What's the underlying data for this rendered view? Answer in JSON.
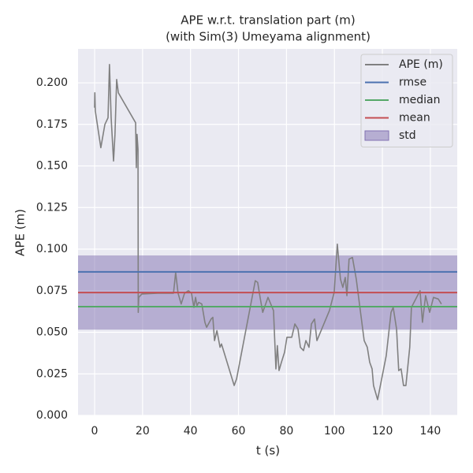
{
  "chart_data": {
    "type": "line",
    "title": [
      "APE w.r.t. translation part (m)",
      "(with Sim(3) Umeyama alignment)"
    ],
    "xlabel": "t (s)",
    "ylabel": "APE (m)",
    "xlim": [
      -6.9,
      151.2
    ],
    "ylim": [
      0,
      0.2204
    ],
    "xticks": [
      0,
      20,
      40,
      60,
      80,
      100,
      120,
      140
    ],
    "yticks": [
      {
        "value": 0,
        "label": "0.000"
      },
      {
        "value": 0.025,
        "label": "0.025"
      },
      {
        "value": 0.05,
        "label": "0.050"
      },
      {
        "value": 0.075,
        "label": "0.075"
      },
      {
        "value": 0.1,
        "label": "0.100"
      },
      {
        "value": 0.125,
        "label": "0.125"
      },
      {
        "value": 0.15,
        "label": "0.150"
      },
      {
        "value": 0.175,
        "label": "0.175"
      },
      {
        "value": 0.2,
        "label": "0.200"
      }
    ],
    "grid": true,
    "legend": "upper right",
    "series": [
      {
        "name": "APE (m)",
        "color": "#808080",
        "x": [
          0,
          0.1,
          0.3,
          2.6,
          4.3,
          5.6,
          6.2,
          6.9,
          7.9,
          8.5,
          9.2,
          9.9,
          17.1,
          17.4,
          17.7,
          18.1,
          18.2,
          18.4,
          19.7,
          26.3,
          32.9,
          33.8,
          34.8,
          36.1,
          37.5,
          39.1,
          40.4,
          41.4,
          42.1,
          42.7,
          43.4,
          44.7,
          46,
          46.7,
          48.6,
          49.3,
          50,
          51,
          52.3,
          52.9,
          58.2,
          59.2,
          67,
          68,
          69,
          70.1,
          72.3,
          74.6,
          75.6,
          76.2,
          76.9,
          77.9,
          79.2,
          80.2,
          82.2,
          83.5,
          84.8,
          85.8,
          87.1,
          88.1,
          89.4,
          90.4,
          91.7,
          92.7,
          97.9,
          99.9,
          101.2,
          102.5,
          103.5,
          104.5,
          105.2,
          106.1,
          107.5,
          109.1,
          112.4,
          113.7,
          114.7,
          115.7,
          116.3,
          118,
          121.6,
          123.6,
          124.5,
          125.9,
          126.8,
          127.8,
          128.8,
          129.8,
          131.4,
          132.1,
          135.7,
          136.7,
          138,
          139.7,
          141.3,
          143.3,
          144.6
        ],
        "values": [
          0.185,
          0.194,
          0.183,
          0.161,
          0.175,
          0.179,
          0.211,
          0.179,
          0.153,
          0.169,
          0.202,
          0.194,
          0.176,
          0.149,
          0.169,
          0.16,
          0.062,
          0.071,
          0.073,
          0.0735,
          0.0735,
          0.086,
          0.0735,
          0.067,
          0.0735,
          0.075,
          0.0735,
          0.065,
          0.071,
          0.066,
          0.068,
          0.067,
          0.056,
          0.053,
          0.058,
          0.059,
          0.045,
          0.051,
          0.041,
          0.043,
          0.018,
          0.022,
          0.081,
          0.08,
          0.071,
          0.062,
          0.071,
          0.063,
          0.028,
          0.042,
          0.027,
          0.032,
          0.038,
          0.047,
          0.047,
          0.055,
          0.052,
          0.041,
          0.039,
          0.045,
          0.041,
          0.055,
          0.058,
          0.045,
          0.063,
          0.074,
          0.103,
          0.082,
          0.077,
          0.083,
          0.072,
          0.094,
          0.095,
          0.082,
          0.045,
          0.041,
          0.032,
          0.028,
          0.018,
          0.0095,
          0.036,
          0.062,
          0.065,
          0.052,
          0.027,
          0.028,
          0.018,
          0.018,
          0.041,
          0.065,
          0.075,
          0.056,
          0.072,
          0.062,
          0.071,
          0.07,
          0.067
        ]
      }
    ],
    "hlines": [
      {
        "name": "rmse",
        "color": "#4c72b0",
        "value": 0.0863
      },
      {
        "name": "median",
        "color": "#55a868",
        "value": 0.0654
      },
      {
        "name": "mean",
        "color": "#c44e52",
        "value": 0.0739
      }
    ],
    "band": {
      "name": "std",
      "color": "#8172b2",
      "value": 0.0223
    }
  }
}
